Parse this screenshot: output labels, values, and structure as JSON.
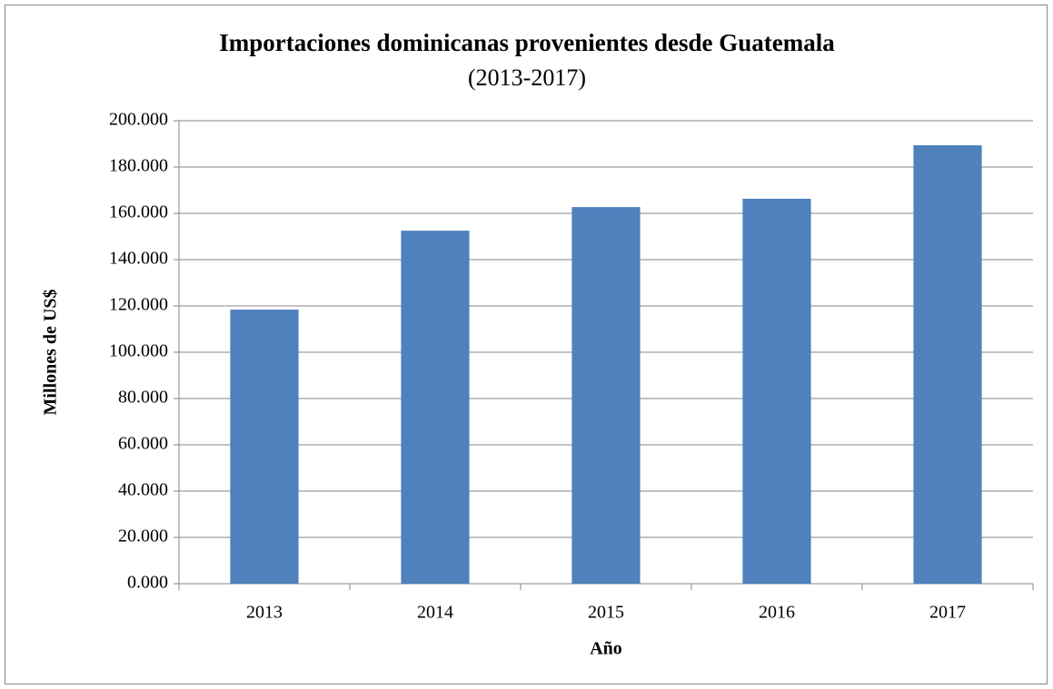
{
  "chart_data": {
    "type": "bar",
    "title": "Importaciones dominicanas provenientes desde Guatemala",
    "subtitle": "(2013-2017)",
    "x_label": "Año",
    "y_label": "Millones de US$",
    "categories": [
      "2013",
      "2014",
      "2015",
      "2016",
      "2017"
    ],
    "values": [
      118.4,
      152.5,
      162.7,
      166.3,
      189.4
    ],
    "color": "#4f81bd",
    "ylim": [
      0,
      200
    ],
    "yticks": [
      {
        "value": 0,
        "label": "0.000"
      },
      {
        "value": 20,
        "label": "20.000"
      },
      {
        "value": 40,
        "label": "40.000"
      },
      {
        "value": 60,
        "label": "60.000"
      },
      {
        "value": 80,
        "label": "80.000"
      },
      {
        "value": 100,
        "label": "100.000"
      },
      {
        "value": 120,
        "label": "120.000"
      },
      {
        "value": 140,
        "label": "140.000"
      },
      {
        "value": 160,
        "label": "160.000"
      },
      {
        "value": 180,
        "label": "180.000"
      },
      {
        "value": 200,
        "label": "200.000"
      }
    ],
    "grid": true
  }
}
